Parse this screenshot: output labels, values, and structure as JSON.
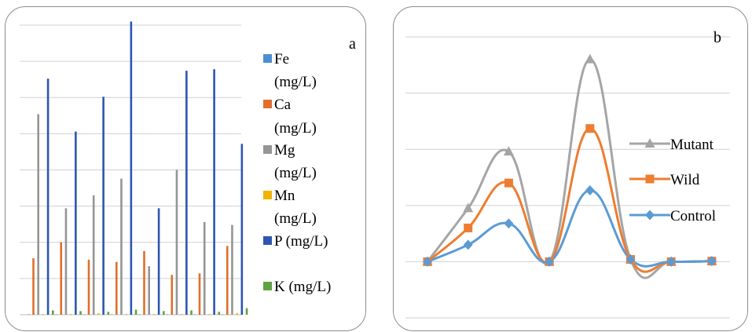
{
  "chart_data": [
    {
      "type": "bar",
      "panel_label": "a",
      "ylim": [
        0,
        400
      ],
      "grid": true,
      "legend_position": "right",
      "categories": [
        "",
        "",
        "",
        "",
        "",
        "",
        "",
        ""
      ],
      "series": [
        {
          "name": "Fe (mg/L)",
          "color": "#4a8fd0",
          "values": [
            0,
            0,
            0,
            0,
            0,
            0,
            0,
            0
          ]
        },
        {
          "name": "Ca (mg/L)",
          "color": "#e06f2b",
          "values": [
            78,
            100,
            76,
            73,
            88,
            55,
            57,
            95
          ]
        },
        {
          "name": "Mg (mg/L)",
          "color": "#959595",
          "values": [
            277,
            147,
            165,
            188,
            67,
            200,
            128,
            124
          ]
        },
        {
          "name": "Mn (mg/L)",
          "color": "#f0b400",
          "values": [
            1,
            1,
            2,
            1,
            1,
            1,
            1,
            2
          ]
        },
        {
          "name": "P (mg/L)",
          "color": "#2e56b0",
          "values": [
            326,
            253,
            301,
            405,
            147,
            337,
            339,
            236
          ]
        },
        {
          "name": "K (mg/L)",
          "color": "#5fa240",
          "values": [
            6,
            5,
            4,
            7,
            5,
            6,
            4,
            9
          ]
        }
      ]
    },
    {
      "type": "line",
      "panel_label": "b",
      "smooth": true,
      "ylim": [
        -1,
        4
      ],
      "grid": true,
      "legend_position": "right",
      "x": [
        1,
        2,
        3,
        4,
        5,
        6,
        7,
        8
      ],
      "series": [
        {
          "name": "Mutant",
          "color": "#a5a5a5",
          "marker": "triangle",
          "values": [
            0,
            0.95,
            1.96,
            0,
            3.6,
            0.04,
            0,
            0.01
          ]
        },
        {
          "name": "Wild",
          "color": "#ed7d31",
          "marker": "square",
          "values": [
            0,
            0.6,
            1.4,
            0,
            2.37,
            0.04,
            0,
            0.01
          ]
        },
        {
          "name": "Control",
          "color": "#5b9bd5",
          "marker": "diamond",
          "values": [
            0,
            0.3,
            0.68,
            0,
            1.27,
            0.04,
            0,
            0.01
          ]
        }
      ]
    }
  ]
}
